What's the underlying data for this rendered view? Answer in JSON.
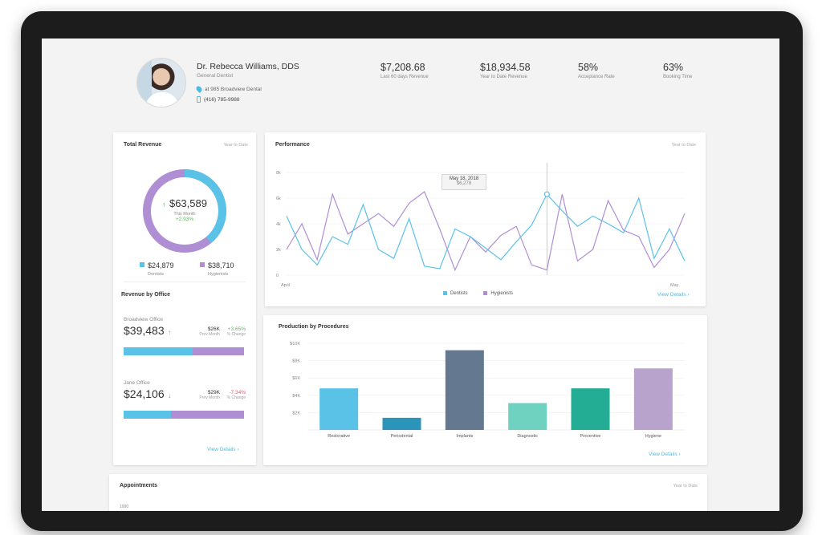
{
  "profile": {
    "name": "Dr. Rebecca Williams, DDS",
    "role": "General Dentist",
    "address": "at 985 Broadview Dental",
    "phone": "(416) 785-9988"
  },
  "stats": [
    {
      "value": "$7,208.68",
      "label": "Last 60 days Revenue"
    },
    {
      "value": "$18,934.58",
      "label": "Year to Date Revenue"
    },
    {
      "value": "58%",
      "label": "Acceptance Rate"
    },
    {
      "value": "63%",
      "label": "Booking Time"
    }
  ],
  "total_revenue": {
    "title": "Total Revenue",
    "period": "Year to Date",
    "amount": "$63,589",
    "amount_label": "This Month",
    "change": "+2.93%",
    "dentists_value": "$24,879",
    "dentists_label": "Dentists",
    "hygienists_value": "$38,710",
    "hygienists_label": "Hygienists",
    "donut_dentists_fraction": 0.39,
    "colors": {
      "dentists": "#5bc2e7",
      "hygienists": "#b08ed3"
    }
  },
  "revenue_by_office": {
    "title": "Revenue by Office",
    "offices": [
      {
        "name": "Broadview Office",
        "amount": "$39,483",
        "trend": "up",
        "prev": "$26K",
        "prev_label": "Prev Month",
        "change": "+3.65%",
        "change_label": "% Change",
        "dentist_fraction": 0.57
      },
      {
        "name": "Jane Office",
        "amount": "$24,106",
        "trend": "down",
        "prev": "$29K",
        "prev_label": "Prev Month",
        "change": "-7.34%",
        "change_label": "% Change",
        "dentist_fraction": 0.39
      }
    ],
    "view_details": "View Details ›"
  },
  "performance": {
    "title": "Performance",
    "period": "Year to Date",
    "tooltip_date": "May 18, 2018",
    "tooltip_value": "$6,278",
    "view_details": "View Details ›"
  },
  "production": {
    "title": "Production by Procedures",
    "view_details": "View Details ›"
  },
  "appointments": {
    "title": "Appointments",
    "period": "Year to Date",
    "first_tick": "1000"
  },
  "chart_data": [
    {
      "type": "line",
      "x_start": "April",
      "x_end": "May",
      "ylim": [
        0,
        8000
      ],
      "y_ticks": [
        "0",
        "2k",
        "4k",
        "6k",
        "8k"
      ],
      "series": [
        {
          "name": "Dentists",
          "color": "#5bc2e7",
          "values": [
            4600,
            2000,
            800,
            3000,
            2400,
            5500,
            2000,
            1300,
            4400,
            700,
            500,
            3600,
            3000,
            2100,
            1200,
            2600,
            3900,
            6300,
            5000,
            3800,
            4600,
            4000,
            3300,
            6000,
            1300,
            3600,
            1100
          ]
        },
        {
          "name": "Hygienists",
          "color": "#b08ed3",
          "values": [
            2000,
            4000,
            1200,
            6300,
            3200,
            4000,
            4800,
            3800,
            5600,
            6500,
            3600,
            400,
            3000,
            1800,
            3100,
            3800,
            800,
            400,
            6300,
            1100,
            2000,
            5800,
            3500,
            3000,
            600,
            2000,
            4800
          ]
        }
      ],
      "highlight_index": 17
    },
    {
      "type": "bar",
      "categories": [
        "Restorative",
        "Periodental",
        "Implants",
        "Diagnostic",
        "Preventive",
        "Hygiene"
      ],
      "values": [
        4800,
        1400,
        9200,
        3100,
        4800,
        7100
      ],
      "colors": [
        "#5bc2e7",
        "#2a94b9",
        "#64798f",
        "#6fd1bf",
        "#23ad94",
        "#b7a3cc"
      ],
      "ylim": [
        0,
        10000
      ],
      "y_ticks": [
        "$2K",
        "$4K",
        "$6K",
        "$8K",
        "$10K"
      ]
    }
  ]
}
